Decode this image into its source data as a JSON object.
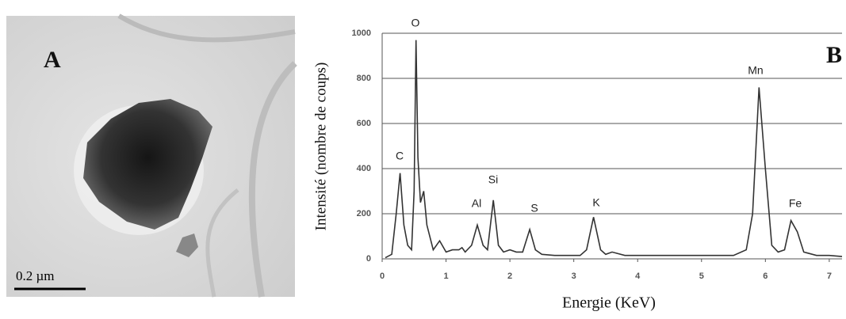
{
  "panel_a": {
    "label": "A",
    "scale_bar": "0.2 µm"
  },
  "chart_data": {
    "type": "line",
    "panel_label": "B",
    "x_label": "Energie (KeV)",
    "y_label": "Intensité (nombre de coups)",
    "x": [
      0.05,
      0.15,
      0.22,
      0.28,
      0.34,
      0.4,
      0.46,
      0.5,
      0.53,
      0.56,
      0.6,
      0.65,
      0.7,
      0.8,
      0.9,
      1.0,
      1.1,
      1.2,
      1.25,
      1.3,
      1.4,
      1.49,
      1.58,
      1.65,
      1.74,
      1.82,
      1.9,
      2.0,
      2.1,
      2.2,
      2.31,
      2.4,
      2.5,
      2.7,
      2.9,
      3.1,
      3.2,
      3.31,
      3.42,
      3.5,
      3.6,
      3.8,
      4.0,
      4.5,
      5.0,
      5.5,
      5.7,
      5.8,
      5.9,
      6.0,
      6.1,
      6.2,
      6.3,
      6.4,
      6.5,
      6.6,
      6.8,
      7.0,
      7.2
    ],
    "values": [
      5,
      20,
      200,
      380,
      150,
      60,
      40,
      300,
      970,
      450,
      250,
      300,
      150,
      40,
      80,
      30,
      40,
      40,
      50,
      30,
      60,
      150,
      60,
      40,
      260,
      60,
      30,
      40,
      30,
      30,
      130,
      40,
      20,
      15,
      15,
      15,
      40,
      185,
      40,
      20,
      30,
      15,
      15,
      15,
      15,
      15,
      40,
      200,
      760,
      400,
      60,
      30,
      40,
      170,
      120,
      30,
      15,
      15,
      10
    ],
    "color": "#333333",
    "annotations": [
      "C",
      "O",
      "Al",
      "Si",
      "S",
      "K",
      "Mn",
      "Fe"
    ],
    "xlim": [
      0,
      7.2
    ],
    "xticks": [
      0,
      1,
      2,
      3,
      4,
      5,
      6,
      7
    ],
    "ylim": [
      0,
      1000
    ],
    "yticks": [
      0,
      200,
      400,
      600,
      800,
      1000
    ],
    "grid": true
  }
}
